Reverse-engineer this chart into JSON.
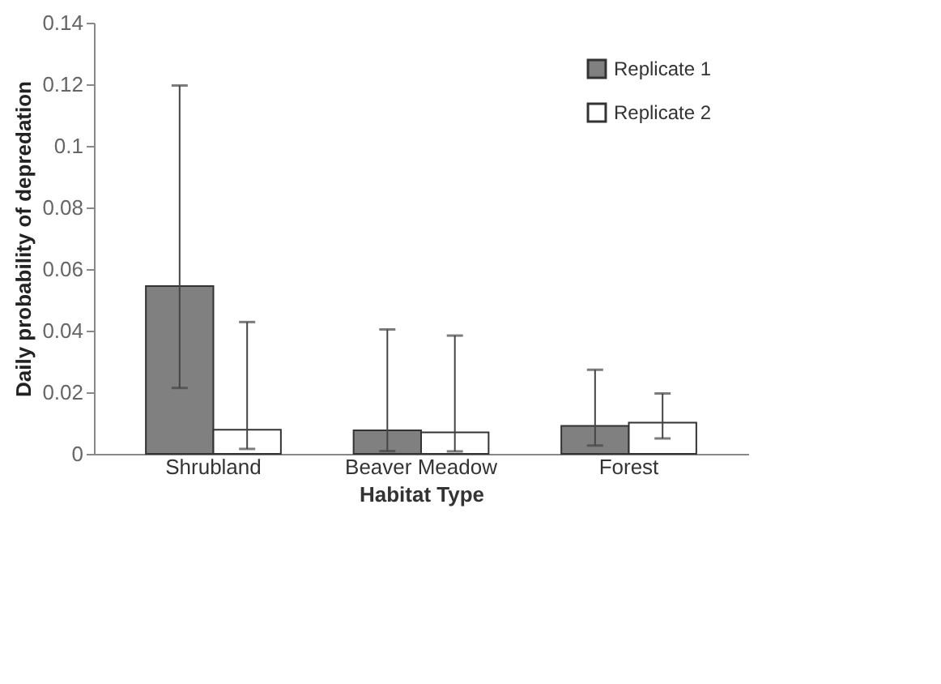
{
  "chart_data": {
    "type": "bar",
    "xlabel": "Habitat Type",
    "ylabel": "Daily probability of depredation",
    "categories": [
      "Shrubland",
      "Beaver Meadow",
      "Forest"
    ],
    "series": [
      {
        "name": "Replicate 1",
        "color": "#808080",
        "values": [
          0.0545,
          0.0076,
          0.0091
        ],
        "errors": [
          [
            0.0214,
            0.1196
          ],
          [
            0.0009,
            0.0404
          ],
          [
            0.0027,
            0.0273
          ]
        ]
      },
      {
        "name": "Replicate 2",
        "color": "#ffffff",
        "values": [
          0.0078,
          0.007,
          0.0101
        ],
        "errors": [
          [
            0.0016,
            0.0428
          ],
          [
            0.0008,
            0.0384
          ],
          [
            0.005,
            0.0196
          ]
        ]
      }
    ],
    "ylim": [
      0,
      0.14
    ],
    "yticks": [
      0,
      0.02,
      0.04,
      0.06,
      0.08,
      0.1,
      0.12,
      0.14
    ],
    "grid": false,
    "legend": "top right"
  }
}
